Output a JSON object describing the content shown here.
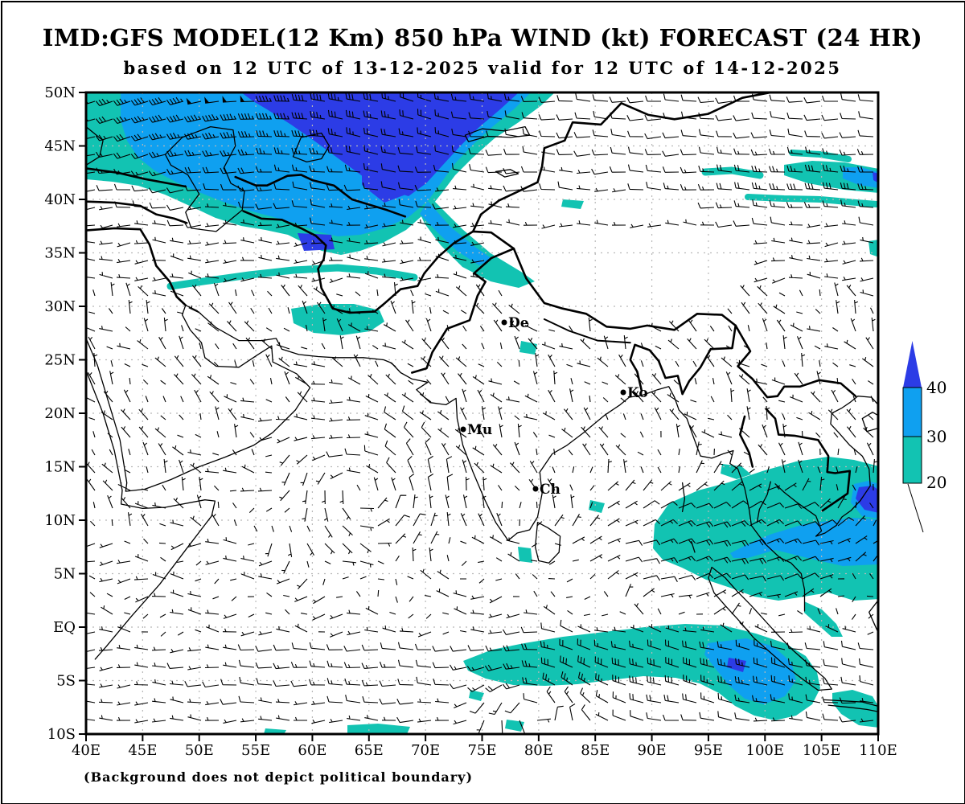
{
  "title": "IMD:GFS MODEL(12 Km) 850 hPa WIND (kt) FORECAST (24 HR)",
  "subtitle": "based on 12 UTC of 13-12-2025 valid for 12 UTC of 14-12-2025",
  "footer_note": "(Background does not depict political boundary)",
  "axes": {
    "lat_labels": [
      "50N",
      "45N",
      "40N",
      "35N",
      "30N",
      "25N",
      "20N",
      "15N",
      "10N",
      "5N",
      "EQ",
      "5S",
      "10S"
    ],
    "lon_labels": [
      "40E",
      "45E",
      "50E",
      "55E",
      "60E",
      "65E",
      "70E",
      "75E",
      "80E",
      "85E",
      "90E",
      "95E",
      "100E",
      "105E",
      "110E"
    ]
  },
  "legend": {
    "labels": [
      "40",
      "30",
      "20"
    ],
    "unit": "kt"
  },
  "cities": [
    {
      "label": "De"
    },
    {
      "label": "Ko"
    },
    {
      "label": "Mu"
    },
    {
      "label": "Ch"
    }
  ],
  "colors": {
    "shade_20": "#12c3b2",
    "shade_30": "#0fa0f0",
    "shade_40": "#2c3ce6",
    "grid": "#b8b8b8",
    "line": "#000000"
  },
  "chart_data": {
    "type": "heatmap",
    "description": "Wind barb field at 850 hPa with shaded isotach regions over South Asia / Indian Ocean domain",
    "title": "IMD:GFS MODEL(12 Km) 850 hPa WIND (kt) FORECAST (24 HR)",
    "subtitle": "based on 12 UTC of 13-12-2025 valid for 12 UTC of 14-12-2025",
    "x_axis": {
      "label": "longitude",
      "range_deg_east": [
        40,
        110
      ],
      "tick_step_deg": 5
    },
    "y_axis": {
      "label": "latitude",
      "range_deg_north": [
        -10,
        50
      ],
      "tick_step_deg": 5
    },
    "colorbar": {
      "unit": "kt",
      "levels": [
        20,
        30,
        40
      ],
      "colors": [
        "#12c3b2",
        "#0fa0f0",
        "#2c3ce6"
      ],
      "top_arrow": "open-ended above 40"
    },
    "high_wind_regions": [
      {
        "name": "mid-latitude westerly jet NW sector",
        "approx_extent": "40-75E, 40-50N",
        "max_kt": 50,
        "wind_from": "WSW"
      },
      {
        "name": "westerly streaks NE sector",
        "approx_extent": "95-110E, 38-43N",
        "max_kt": 40,
        "wind_from": "W"
      },
      {
        "name": "easterlies Bay of Bengal / SE Asia",
        "approx_extent": "85-110E, 2-14N",
        "max_kt": 35,
        "wind_from": "E/NE"
      },
      {
        "name": "southern hemisphere WNW band",
        "approx_extent": "63-110E, 2-9S",
        "max_kt": 35,
        "wind_from": "WNW"
      }
    ],
    "cities_marked": [
      "De",
      "Ko",
      "Mu",
      "Ch"
    ]
  }
}
